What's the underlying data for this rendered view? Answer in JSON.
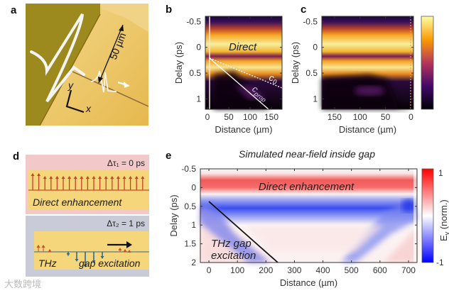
{
  "panels": {
    "a": {
      "label": "a",
      "scale": "50 µm",
      "axis_x": "x",
      "axis_y": "y"
    },
    "b": {
      "label": "b",
      "annotation_direct": "Direct",
      "annotation_c0": "c",
      "annotation_c0_sub": "0",
      "annotation_cprop": "c",
      "annotation_cprop_sub": "prop"
    },
    "c": {
      "label": "c"
    },
    "d": {
      "label": "d",
      "top_delay": "Δτ₁ = 0 ps",
      "top_text": "Direct enhancement",
      "bottom_delay": "Δτ₂ = 1 ps",
      "bottom_text_1": "THz",
      "bottom_text_2": "gap excitation"
    },
    "e": {
      "label": "e",
      "annotation_direct": "Direct enhancement",
      "annotation_thz_1": "THz gap",
      "annotation_thz_2": "excitation"
    }
  },
  "watermark": "大数跨境",
  "colors": {
    "positive": "#e8302a",
    "negative": "#1d2de0",
    "gold": "#f2c35a",
    "inferno_high": "#f7f3a0",
    "inferno_low": "#0b0410"
  },
  "chart_data": [
    {
      "id": "b",
      "type": "heatmap",
      "xlabel": "Distance (µm)",
      "ylabel": "Delay (ps)",
      "xlim": [
        -5,
        175
      ],
      "ylim": [
        -0.6,
        1.2
      ],
      "xticks": [
        0,
        50,
        100,
        150
      ],
      "yticks": [
        -0.5,
        0,
        0.5,
        1
      ],
      "ytick_labels": [
        "-0.5",
        "0",
        "0.5",
        "1"
      ]
    },
    {
      "id": "c",
      "type": "heatmap",
      "xlabel": "Distance (µm)",
      "ylabel": "Delay (ps)",
      "xlim": [
        175,
        -5
      ],
      "ylim": [
        -0.6,
        1.2
      ],
      "xticks": [
        150,
        100,
        50,
        0
      ],
      "yticks": [
        -0.5,
        0,
        0.5,
        1
      ],
      "ytick_labels": [
        "-0.5",
        "0",
        "0.5",
        "1"
      ]
    },
    {
      "id": "e",
      "type": "heatmap",
      "title": "Simulated near-field inside gap",
      "xlabel": "Distance (µm)",
      "ylabel": "Delay (ps)",
      "xlim": [
        -30,
        730
      ],
      "ylim": [
        -0.5,
        2
      ],
      "xticks": [
        0,
        100,
        200,
        300,
        400,
        500,
        600,
        700
      ],
      "yticks": [
        -0.5,
        0,
        0.5,
        1,
        1.5,
        2
      ],
      "ytick_labels": [
        "-0.5",
        "0",
        "0.5",
        "1",
        "1.5",
        "2"
      ],
      "colorbar": {
        "label": "E",
        "label_sub": "y",
        "label_suffix": " (norm.)",
        "min": -1,
        "max": 1,
        "min_label": "-1",
        "max_label": "1"
      }
    }
  ]
}
